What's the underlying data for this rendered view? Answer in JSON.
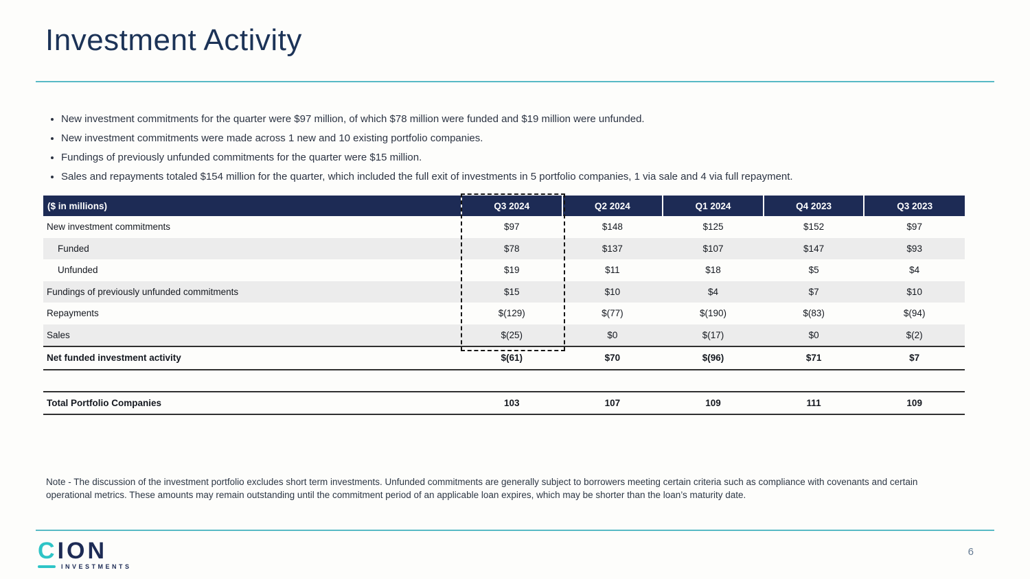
{
  "slide": {
    "title": "Investment Activity"
  },
  "bullets": [
    "New investment commitments for the quarter were $97 million, of which $78 million were funded and $19 million were unfunded.",
    "New investment commitments were made across 1 new and 10 existing portfolio companies.",
    "Fundings of previously unfunded commitments for the quarter were $15 million.",
    "Sales and repayments totaled $154 million for the quarter, which included the full exit of investments in 5 portfolio companies, 1 via sale and 4 via full repayment."
  ],
  "table": {
    "header_label": "($ in millions)",
    "columns": [
      "Q3 2024",
      "Q2 2024",
      "Q1 2024",
      "Q4 2023",
      "Q3 2023"
    ],
    "highlighted_column": "Q3 2024",
    "rows": [
      {
        "label": "New investment commitments",
        "values": [
          "$97",
          "$148",
          "$125",
          "$152",
          "$97"
        ]
      },
      {
        "label": "Funded",
        "values": [
          "$78",
          "$137",
          "$107",
          "$147",
          "$93"
        ]
      },
      {
        "label": "Unfunded",
        "values": [
          "$19",
          "$11",
          "$18",
          "$5",
          "$4"
        ]
      },
      {
        "label": "Fundings of previously unfunded commitments",
        "values": [
          "$15",
          "$10",
          "$4",
          "$7",
          "$10"
        ]
      },
      {
        "label": "Repayments",
        "values": [
          "$(129)",
          "$(77)",
          "$(190)",
          "$(83)",
          "$(94)"
        ]
      },
      {
        "label": "Sales",
        "values": [
          "$(25)",
          "$0",
          "$(17)",
          "$0",
          "$(2)"
        ]
      }
    ],
    "net_row": {
      "label": "Net funded investment activity",
      "values": [
        "$(61)",
        "$70",
        "$(96)",
        "$71",
        "$7"
      ]
    },
    "portfolio_row": {
      "label": "Total Portfolio Companies",
      "values": [
        "103",
        "107",
        "109",
        "111",
        "109"
      ]
    }
  },
  "note": "Note - The discussion of the investment portfolio excludes short term investments. Unfunded commitments are generally subject to borrowers meeting certain criteria such as compliance with covenants and certain operational metrics. These amounts may remain outstanding until the commitment period of an applicable loan expires, which may be shorter than the loan’s maturity date.",
  "footer": {
    "logo_c": "C",
    "logo_ion": "ION",
    "logo_sub": "INVESTMENTS",
    "page_number": "6"
  },
  "colors": {
    "navy": "#1d2b55",
    "teal": "#57b9c5",
    "stripe": "#ececec"
  }
}
